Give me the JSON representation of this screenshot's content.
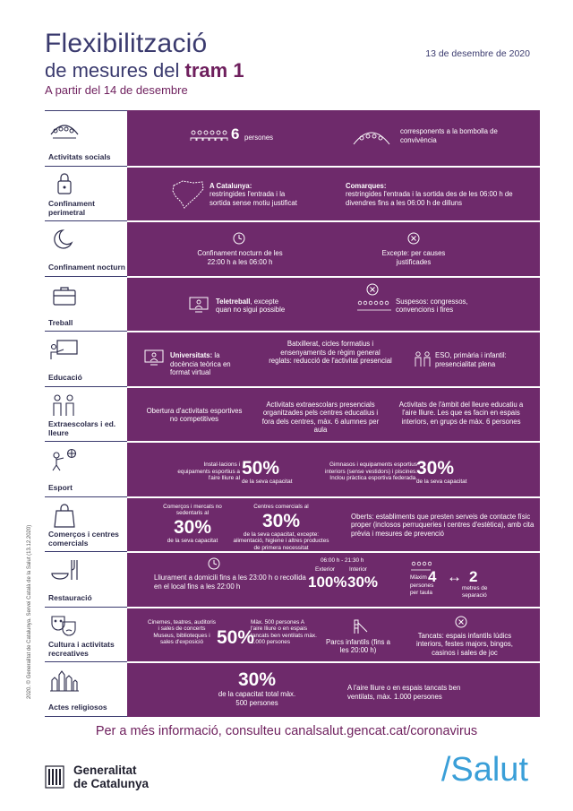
{
  "header": {
    "title_line1": "Flexibilització",
    "title_line2_pre": "de mesures del ",
    "title_line2_accent": "tram 1",
    "subtitle": "A partir del 14 de desembre",
    "date": "13 de desembre de 2020"
  },
  "colors": {
    "accent": "#6e2a6b",
    "title": "#3a3a6e",
    "salut": "#3a9fd8"
  },
  "rows": {
    "socials": {
      "label": "Activitats socials",
      "count": "6",
      "count_unit": "persones",
      "bubble": "corresponents a la bombolla de convivència"
    },
    "confinament": {
      "label": "Confinament perimetral",
      "cat_title": "A Catalunya:",
      "cat_text": "restringides l'entrada i la sortida sense motiu justificat",
      "com_title": "Comarques:",
      "com_text": "restringides l'entrada i la sortida des de les 06:00 h de divendres fins a les 06:00 h de dilluns"
    },
    "nocturn": {
      "label": "Confinament nocturn",
      "text": "Confinament nocturn de les 22:00 h a les 06:00 h",
      "except": "Excepte: per causes justificades"
    },
    "treball": {
      "label": "Treball",
      "tele_bold": "Teletreball",
      "tele_text": ", excepte quan no sigui possible",
      "susp": "Suspesos: congressos, convencions i fires"
    },
    "educacio": {
      "label": "Educació",
      "uni_bold": "Universitats:",
      "uni_text": " la docència teòrica en format virtual",
      "batx": "Batxillerat, cicles formatius i ensenyaments de règim general reglats: reducció de l'activitat presencial",
      "eso": "ESO, primària i infantil: presencialitat plena"
    },
    "extraescolars": {
      "label": "Extraescolars i ed. lleure",
      "c1": "Obertura d'activitats esportives no competitives",
      "c2": "Activitats extraescolars presencials organitzades pels centres educatius i fora dels centres, màx. 6 alumnes per aula",
      "c3": "Activitats de l'àmbit del lleure educatiu a l'aire lliure. Les que es facin en espais interiors, en grups de màx. 6 persones"
    },
    "esport": {
      "label": "Esport",
      "l_text": "Instal·lacions i equipaments esportius a l'aire lliure al",
      "l_pct": "50%",
      "l_sub": "de la seva capacitat",
      "r_text": "Gimnasos i equipaments esportius interiors (sense vestidors) i piscines. Inclou pràctica esportiva federada.",
      "r_pct": "30%",
      "r_sub": "de la seva capacitat"
    },
    "comercos": {
      "label": "Comerços i centres comercials",
      "c1_text": "Comerços i mercats no sedentaris al",
      "c1_pct": "30%",
      "c1_sub": "de la seva capacitat",
      "c2_text": "Centres comercials al",
      "c2_pct": "30%",
      "c2_sub": "de la seva capacitat, excepte: alimentació, higiene i altres productes de primera necessitat",
      "c3": "Oberts: establiments que presten serveis de contacte físic proper (inclosos perruqueries i centres d'estètica), amb cita prèvia i mesures de prevenció"
    },
    "restauracio": {
      "label": "Restauració",
      "text": "Lliurament a domicili fins a les 23:00 h o recollida en el local fins a les 22:00 h",
      "hours": "06:00 h - 21:30 h",
      "ext_label": "Exterior",
      "ext_pct": "100%",
      "int_label": "Interior",
      "int_pct": "30%",
      "max_label": "Màxim",
      "max_val": "4",
      "max_sub": "persones per taula",
      "sep_val": "2",
      "sep_sub": "metres de separació",
      "arrow": "↔"
    },
    "cultura": {
      "label": "Cultura i activitats recreatives",
      "c1_text": "Cinemes, teatres, auditoris i sales de concerts Museus, biblioteques i sales d'exposició",
      "c1_pct": "50%",
      "c1_side": "Màx. 500 persones A l'aire lliure o en espais tancats ben ventilats màx. 1.000 persones",
      "parcs": "Parcs infantils (fins a les 20:00 h)",
      "tancats": "Tancats: espais infantils lúdics interiors, festes majors, bingos, casinos i sales de joc"
    },
    "religiosos": {
      "label": "Actes religiosos",
      "pct": "30%",
      "sub": "de la capacitat total màx. 500 persones",
      "right": "A l'aire lliure o en espais tancats ben ventilats, màx. 1.000 persones"
    }
  },
  "more_info": "Per a més informació, consulteu canalsalut.gencat.cat/coronavirus",
  "footer": {
    "gen_line1": "Generalitat",
    "gen_line2": "de Catalunya",
    "salut": "/Salut",
    "credit": "2020. © Generalitat de Catalunya. Servei Català de la Salut (13.12.2020)"
  }
}
